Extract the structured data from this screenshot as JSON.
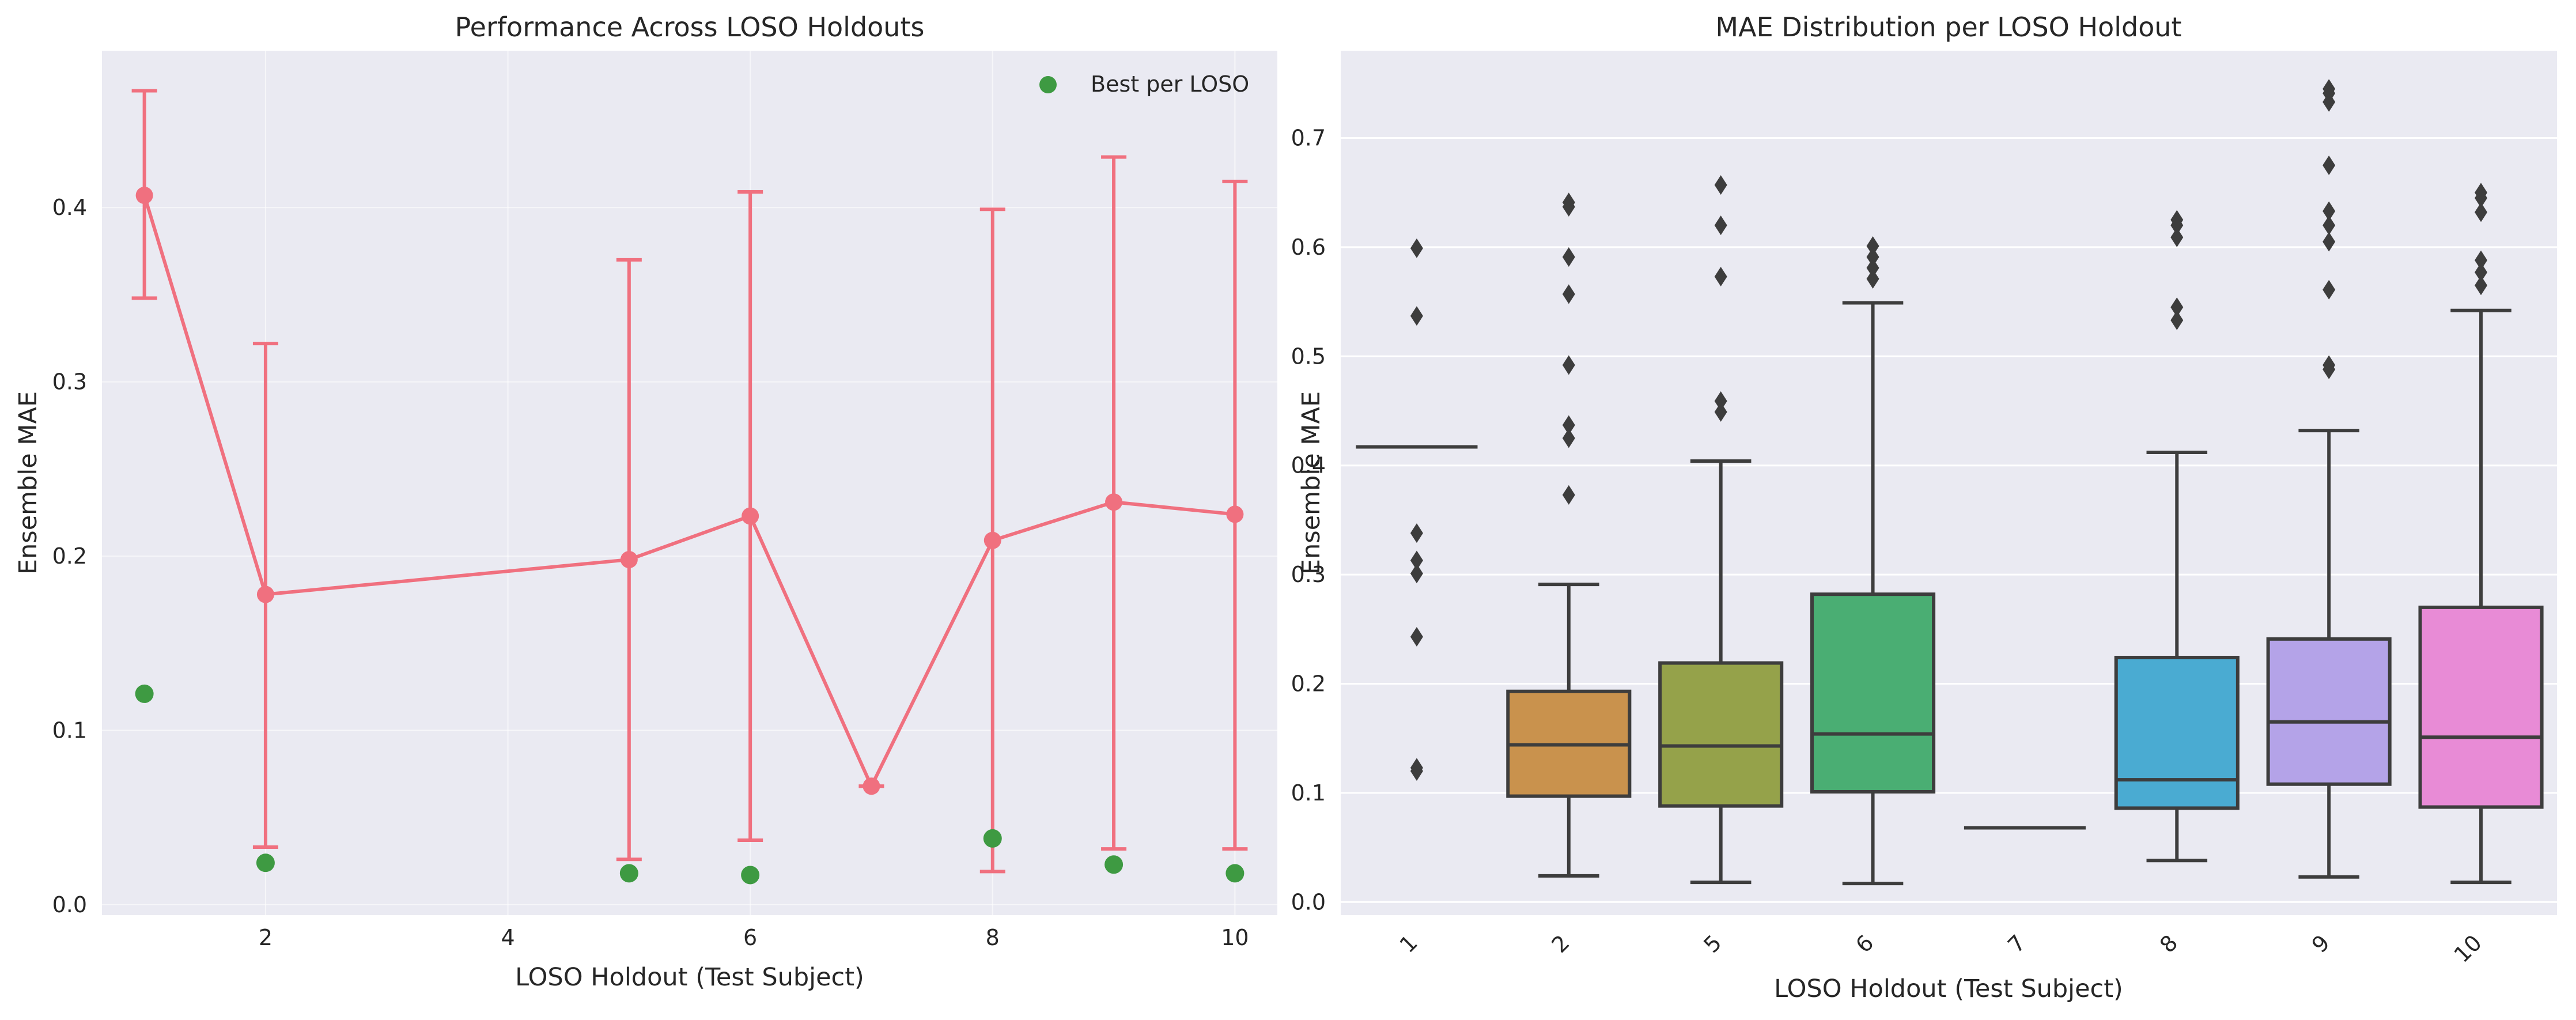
{
  "chart_data": [
    {
      "type": "line",
      "title": "Performance Across LOSO Holdouts",
      "xlabel": "LOSO Holdout (Test Subject)",
      "ylabel": "Ensemble MAE",
      "xlim": [
        0.65,
        10.35
      ],
      "ylim": [
        -0.006,
        0.49
      ],
      "xticks": [
        2,
        4,
        6,
        8,
        10
      ],
      "yticks": [
        0.0,
        0.1,
        0.2,
        0.3,
        0.4
      ],
      "grid": true,
      "legend": "top-right",
      "series": [
        {
          "type": "line-errorbar",
          "color": "#f0707f",
          "x": [
            1,
            2,
            5,
            6,
            7,
            8,
            9,
            10
          ],
          "y": [
            0.407,
            0.178,
            0.198,
            0.223,
            0.068,
            0.209,
            0.231,
            0.224
          ],
          "err_low": [
            0.348,
            0.033,
            0.026,
            0.037,
            0.068,
            0.019,
            0.032,
            0.032
          ],
          "err_high": [
            0.467,
            0.322,
            0.37,
            0.409,
            0.068,
            0.399,
            0.429,
            0.415
          ]
        },
        {
          "type": "scatter",
          "name": "Best per LOSO",
          "color": "#3e9a42",
          "x": [
            1,
            2,
            5,
            6,
            8,
            9,
            10
          ],
          "y": [
            0.121,
            0.024,
            0.018,
            0.017,
            0.038,
            0.023,
            0.018
          ]
        }
      ]
    },
    {
      "type": "box",
      "title": "MAE Distribution per LOSO Holdout",
      "xlabel": "LOSO Holdout (Test Subject)",
      "ylabel": "Ensemble MAE",
      "ylim": [
        -0.012,
        0.78
      ],
      "yticks": [
        0.0,
        0.1,
        0.2,
        0.3,
        0.4,
        0.5,
        0.6,
        0.7
      ],
      "grid": true,
      "categories": [
        "1",
        "2",
        "5",
        "6",
        "7",
        "8",
        "9",
        "10"
      ],
      "boxes": [
        {
          "min": 0.417,
          "q1": 0.417,
          "median": 0.417,
          "q3": 0.417,
          "max": 0.417,
          "color": "",
          "outliers": [
            0.599,
            0.537,
            0.338,
            0.313,
            0.301,
            0.243,
            0.123,
            0.12
          ]
        },
        {
          "min": 0.024,
          "q1": 0.097,
          "median": 0.144,
          "q3": 0.193,
          "max": 0.291,
          "color": "#c9924d",
          "outliers": [
            0.641,
            0.637,
            0.591,
            0.557,
            0.492,
            0.437,
            0.425,
            0.373
          ]
        },
        {
          "min": 0.018,
          "q1": 0.088,
          "median": 0.143,
          "q3": 0.219,
          "max": 0.404,
          "color": "#95a24a",
          "outliers": [
            0.657,
            0.62,
            0.573,
            0.459,
            0.449
          ]
        },
        {
          "min": 0.017,
          "q1": 0.101,
          "median": 0.154,
          "q3": 0.282,
          "max": 0.549,
          "color": "#4aae73",
          "outliers": [
            0.601,
            0.591,
            0.581,
            0.571
          ]
        },
        {
          "min": 0.068,
          "q1": 0.068,
          "median": 0.068,
          "q3": 0.068,
          "max": 0.068,
          "color": "",
          "outliers": []
        },
        {
          "min": 0.038,
          "q1": 0.086,
          "median": 0.112,
          "q3": 0.224,
          "max": 0.412,
          "color": "#4aabd2",
          "outliers": [
            0.625,
            0.62,
            0.609,
            0.545,
            0.533
          ]
        },
        {
          "min": 0.023,
          "q1": 0.108,
          "median": 0.165,
          "q3": 0.241,
          "max": 0.432,
          "color": "#b4a3e8",
          "outliers": [
            0.745,
            0.741,
            0.733,
            0.675,
            0.633,
            0.62,
            0.605,
            0.561,
            0.492,
            0.488
          ]
        },
        {
          "min": 0.018,
          "q1": 0.087,
          "median": 0.151,
          "q3": 0.27,
          "max": 0.542,
          "color": "#e88bd6",
          "outliers": [
            0.65,
            0.645,
            0.632,
            0.588,
            0.577,
            0.565
          ]
        }
      ]
    }
  ]
}
